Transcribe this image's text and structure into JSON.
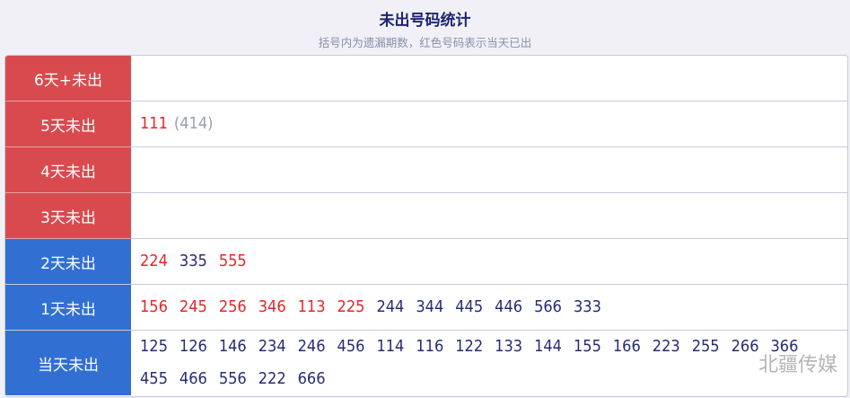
{
  "header": {
    "title": "未出号码统计",
    "subtitle": "括号内为遗漏期数，红色号码表示当天已出"
  },
  "colors": {
    "red_label": "#d94a4f",
    "blue_label": "#3170d2",
    "hit": "#e3262b",
    "normal": "#272c72",
    "miss": "#9a9dbb"
  },
  "rows": [
    {
      "label": "6天+未出",
      "color": "red",
      "numbers": []
    },
    {
      "label": "5天未出",
      "color": "red",
      "numbers": [
        {
          "n": "111",
          "hit": true,
          "miss": "(414)"
        }
      ]
    },
    {
      "label": "4天未出",
      "color": "red",
      "numbers": []
    },
    {
      "label": "3天未出",
      "color": "red",
      "numbers": []
    },
    {
      "label": "2天未出",
      "color": "blue",
      "numbers": [
        {
          "n": "224",
          "hit": true
        },
        {
          "n": "335",
          "hit": false
        },
        {
          "n": "555",
          "hit": true
        }
      ]
    },
    {
      "label": "1天未出",
      "color": "blue",
      "numbers": [
        {
          "n": "156",
          "hit": true
        },
        {
          "n": "245",
          "hit": true
        },
        {
          "n": "256",
          "hit": true
        },
        {
          "n": "346",
          "hit": true
        },
        {
          "n": "113",
          "hit": true
        },
        {
          "n": "225",
          "hit": true
        },
        {
          "n": "244",
          "hit": false
        },
        {
          "n": "344",
          "hit": false
        },
        {
          "n": "445",
          "hit": false
        },
        {
          "n": "446",
          "hit": false
        },
        {
          "n": "566",
          "hit": false
        },
        {
          "n": "333",
          "hit": false
        }
      ]
    },
    {
      "label": "当天未出",
      "color": "blue",
      "numbers": [
        {
          "n": "125"
        },
        {
          "n": "126"
        },
        {
          "n": "146"
        },
        {
          "n": "234"
        },
        {
          "n": "246"
        },
        {
          "n": "456"
        },
        {
          "n": "114"
        },
        {
          "n": "116"
        },
        {
          "n": "122"
        },
        {
          "n": "133"
        },
        {
          "n": "144"
        },
        {
          "n": "155"
        },
        {
          "n": "166"
        },
        {
          "n": "223"
        },
        {
          "n": "255"
        },
        {
          "n": "266"
        },
        {
          "n": "366"
        },
        {
          "n": "455"
        },
        {
          "n": "466"
        },
        {
          "n": "556"
        },
        {
          "n": "222"
        },
        {
          "n": "666"
        }
      ]
    }
  ],
  "watermark": "北疆传媒"
}
